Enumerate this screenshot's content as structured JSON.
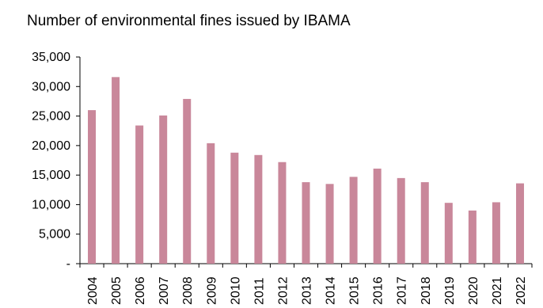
{
  "chart_data": {
    "type": "bar",
    "title": "Number of environmental fines issued by IBAMA",
    "categories": [
      "2004",
      "2005",
      "2006",
      "2007",
      "2008",
      "2009",
      "2010",
      "2011",
      "2012",
      "2013",
      "2014",
      "2015",
      "2016",
      "2017",
      "2018",
      "2019",
      "2020",
      "2021",
      "2022"
    ],
    "values": [
      26000,
      31600,
      23400,
      25100,
      27900,
      20400,
      18800,
      18400,
      17200,
      13800,
      13500,
      14700,
      16100,
      14500,
      13800,
      10300,
      9000,
      10400,
      13600
    ],
    "ylim": [
      0,
      35000
    ],
    "yticks": [
      0,
      5000,
      10000,
      15000,
      20000,
      25000,
      30000,
      35000
    ],
    "ytick_labels": [
      "-",
      "5,000",
      "10,000",
      "15,000",
      "20,000",
      "25,000",
      "30,000",
      "35,000"
    ],
    "xlabel": "",
    "ylabel": "",
    "grid": false,
    "bar_color": "#c9879a"
  }
}
